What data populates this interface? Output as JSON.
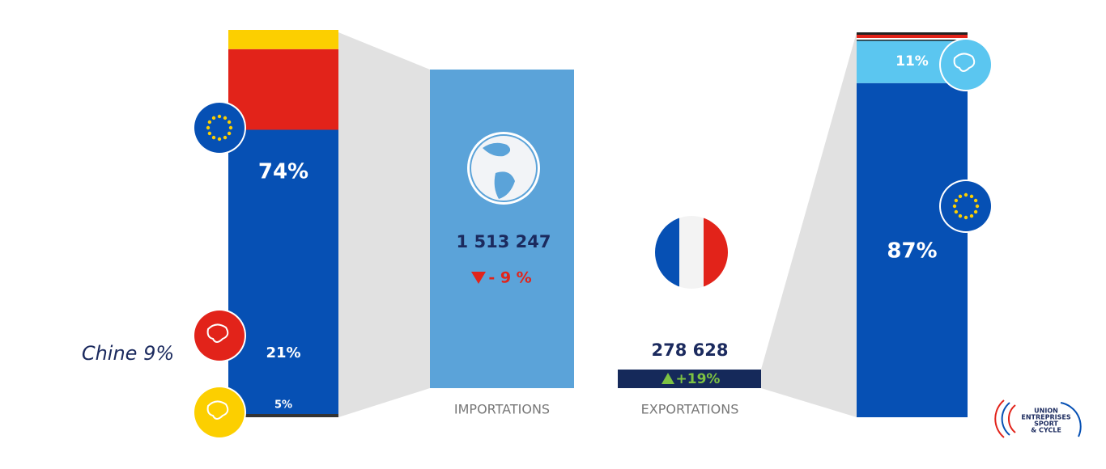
{
  "importations": {
    "caption": "IMPORTATIONS",
    "total": "1 513 247",
    "change": "- 9 %",
    "note": "Chine 9%",
    "breakdown": {
      "values": [
        74,
        21,
        5
      ],
      "value_labels": [
        "74%",
        "21%",
        "5%"
      ],
      "colors": [
        "#0650b4",
        "#e2231a",
        "#fccf00"
      ]
    }
  },
  "exportations": {
    "caption": "EXPORTATIONS",
    "total": "278 628",
    "change": "+19%",
    "breakdown": {
      "values": [
        87,
        11
      ],
      "value_labels": [
        "87%",
        "11%"
      ],
      "colors": [
        "#0650b4",
        "#5bc6f0"
      ]
    }
  },
  "logo": {
    "lines": [
      "UNION",
      "ENTREPRISES",
      "SPORT",
      "& CYCLE"
    ]
  }
}
